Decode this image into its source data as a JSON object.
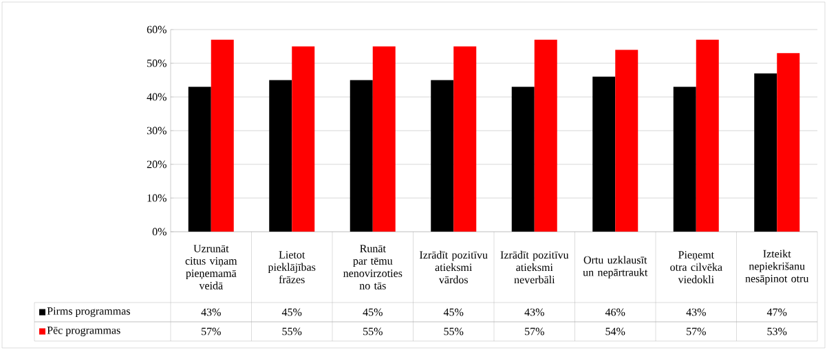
{
  "chart_data": {
    "type": "bar",
    "categories": [
      "Uzrunāt citus viņam pieņemamā veidā",
      "Lietot pieklājības frāzes",
      "Runāt par tēmu nenovirzoties no tās",
      "Izrādīt pozitīvu atieksmi vārdos",
      "Izrādīt pozitīvu atieksmi neverbāli",
      "Ortu uzklausīt un nepārtraukt",
      "Pieņemt otra cilvēka viedokli",
      "Izteikt nepiekrišanu nesāpinot otru"
    ],
    "series": [
      {
        "name": "Pirms programmas",
        "color": "#000000",
        "values": [
          43,
          45,
          45,
          45,
          43,
          46,
          43,
          47
        ],
        "value_labels": [
          "43%",
          "45%",
          "45%",
          "45%",
          "43%",
          "46%",
          "43%",
          "47%"
        ]
      },
      {
        "name": "Pēc programmas",
        "color": "#ff0000",
        "values": [
          57,
          55,
          55,
          55,
          57,
          54,
          57,
          53
        ],
        "value_labels": [
          "57%",
          "55%",
          "55%",
          "55%",
          "57%",
          "54%",
          "57%",
          "53%"
        ]
      }
    ],
    "ylim": [
      0,
      60
    ],
    "yticks": [
      {
        "value": 0,
        "label": "0%"
      },
      {
        "value": 10,
        "label": "10%"
      },
      {
        "value": 20,
        "label": "20%"
      },
      {
        "value": 30,
        "label": "30%"
      },
      {
        "value": 40,
        "label": "40%"
      },
      {
        "value": 50,
        "label": "50%"
      },
      {
        "value": 60,
        "label": "60%"
      }
    ],
    "grid": "y",
    "legend": "bottom left"
  }
}
